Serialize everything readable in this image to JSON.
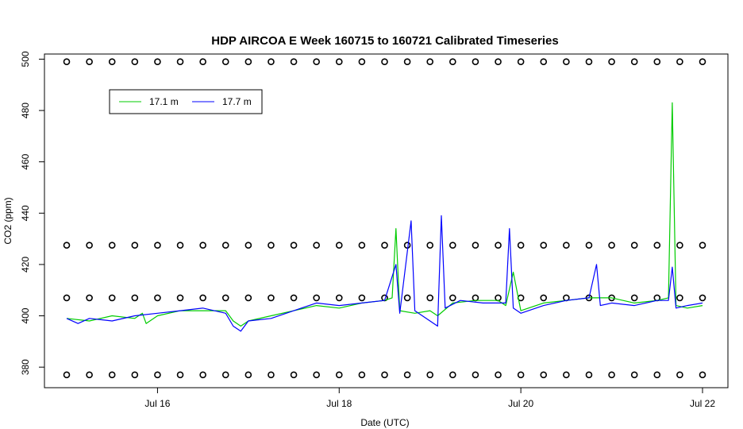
{
  "chart_data": {
    "type": "line",
    "title": "HDP AIRCOA E  Week 160715 to 160721  Calibrated Timeseries",
    "xlabel": "Date (UTC)",
    "ylabel": "CO2 (ppm)",
    "xlim": [
      "2016-07-15T00:00",
      "2016-07-22T00:00"
    ],
    "ylim": [
      372,
      502
    ],
    "x_ticks": [
      {
        "date": "2016-07-16",
        "label": "Jul 16"
      },
      {
        "date": "2016-07-18",
        "label": "Jul 18"
      },
      {
        "date": "2016-07-20",
        "label": "Jul 20"
      },
      {
        "date": "2016-07-22",
        "label": "Jul 22"
      }
    ],
    "y_ticks": [
      380,
      400,
      420,
      440,
      460,
      480,
      500
    ],
    "grid": false,
    "legend": {
      "position": "top-left"
    },
    "series": [
      {
        "name": "17.1 m",
        "color": "#00cc00",
        "points": [
          [
            "2016-07-15T00:00",
            399
          ],
          [
            "2016-07-15T06:00",
            398
          ],
          [
            "2016-07-15T12:00",
            400
          ],
          [
            "2016-07-15T18:00",
            399
          ],
          [
            "2016-07-15T20:00",
            401
          ],
          [
            "2016-07-15T21:00",
            397
          ],
          [
            "2016-07-16T00:00",
            400
          ],
          [
            "2016-07-16T06:00",
            402
          ],
          [
            "2016-07-16T12:00",
            402
          ],
          [
            "2016-07-16T18:00",
            402
          ],
          [
            "2016-07-16T20:00",
            398
          ],
          [
            "2016-07-16T22:00",
            396
          ],
          [
            "2016-07-17T00:00",
            398
          ],
          [
            "2016-07-17T06:00",
            400
          ],
          [
            "2016-07-17T12:00",
            402
          ],
          [
            "2016-07-17T18:00",
            404
          ],
          [
            "2016-07-18T00:00",
            403
          ],
          [
            "2016-07-18T06:00",
            405
          ],
          [
            "2016-07-18T12:00",
            406
          ],
          [
            "2016-07-18T14:00",
            407
          ],
          [
            "2016-07-18T15:00",
            434
          ],
          [
            "2016-07-18T16:00",
            402
          ],
          [
            "2016-07-18T20:00",
            401
          ],
          [
            "2016-07-19T00:00",
            402
          ],
          [
            "2016-07-19T02:00",
            400
          ],
          [
            "2016-07-19T06:00",
            405
          ],
          [
            "2016-07-19T12:00",
            406
          ],
          [
            "2016-07-19T18:00",
            406
          ],
          [
            "2016-07-19T20:00",
            404
          ],
          [
            "2016-07-19T22:00",
            417
          ],
          [
            "2016-07-20T00:00",
            402
          ],
          [
            "2016-07-20T06:00",
            405
          ],
          [
            "2016-07-20T12:00",
            406
          ],
          [
            "2016-07-20T18:00",
            407
          ],
          [
            "2016-07-21T00:00",
            407
          ],
          [
            "2016-07-21T06:00",
            405
          ],
          [
            "2016-07-21T12:00",
            406
          ],
          [
            "2016-07-21T15:00",
            407
          ],
          [
            "2016-07-21T16:00",
            483
          ],
          [
            "2016-07-21T17:00",
            404
          ],
          [
            "2016-07-21T20:00",
            403
          ],
          [
            "2016-07-22T00:00",
            404
          ]
        ]
      },
      {
        "name": "17.7 m",
        "color": "#0000ff",
        "points": [
          [
            "2016-07-15T00:00",
            399
          ],
          [
            "2016-07-15T03:00",
            397
          ],
          [
            "2016-07-15T06:00",
            399
          ],
          [
            "2016-07-15T12:00",
            398
          ],
          [
            "2016-07-15T18:00",
            400
          ],
          [
            "2016-07-16T00:00",
            401
          ],
          [
            "2016-07-16T06:00",
            402
          ],
          [
            "2016-07-16T12:00",
            403
          ],
          [
            "2016-07-16T18:00",
            401
          ],
          [
            "2016-07-16T20:00",
            396
          ],
          [
            "2016-07-16T22:00",
            394
          ],
          [
            "2016-07-17T00:00",
            398
          ],
          [
            "2016-07-17T06:00",
            399
          ],
          [
            "2016-07-17T12:00",
            402
          ],
          [
            "2016-07-17T18:00",
            405
          ],
          [
            "2016-07-18T00:00",
            404
          ],
          [
            "2016-07-18T06:00",
            405
          ],
          [
            "2016-07-18T12:00",
            406
          ],
          [
            "2016-07-18T15:00",
            420
          ],
          [
            "2016-07-18T16:00",
            401
          ],
          [
            "2016-07-18T19:00",
            437
          ],
          [
            "2016-07-18T20:00",
            402
          ],
          [
            "2016-07-19T00:00",
            398
          ],
          [
            "2016-07-19T02:00",
            396
          ],
          [
            "2016-07-19T03:00",
            439
          ],
          [
            "2016-07-19T04:00",
            403
          ],
          [
            "2016-07-19T08:00",
            406
          ],
          [
            "2016-07-19T14:00",
            405
          ],
          [
            "2016-07-19T20:00",
            405
          ],
          [
            "2016-07-19T21:00",
            434
          ],
          [
            "2016-07-19T22:00",
            403
          ],
          [
            "2016-07-20T00:00",
            401
          ],
          [
            "2016-07-20T06:00",
            404
          ],
          [
            "2016-07-20T12:00",
            406
          ],
          [
            "2016-07-20T18:00",
            407
          ],
          [
            "2016-07-20T20:00",
            420
          ],
          [
            "2016-07-20T21:00",
            404
          ],
          [
            "2016-07-21T00:00",
            405
          ],
          [
            "2016-07-21T06:00",
            404
          ],
          [
            "2016-07-21T12:00",
            406
          ],
          [
            "2016-07-21T15:00",
            406
          ],
          [
            "2016-07-21T16:00",
            419
          ],
          [
            "2016-07-21T17:00",
            403
          ],
          [
            "2016-07-21T20:00",
            404
          ],
          [
            "2016-07-22T00:00",
            405
          ]
        ]
      },
      {
        "name": "",
        "color": "#000000",
        "marker": "circle",
        "points": [
          [
            "2016-07-15T00:00",
            377
          ],
          [
            "2016-07-15T06:00",
            377
          ],
          [
            "2016-07-15T12:00",
            377
          ],
          [
            "2016-07-15T18:00",
            377
          ],
          [
            "2016-07-16T00:00",
            377
          ],
          [
            "2016-07-16T06:00",
            377
          ],
          [
            "2016-07-16T12:00",
            377
          ],
          [
            "2016-07-16T18:00",
            377
          ],
          [
            "2016-07-17T00:00",
            377
          ],
          [
            "2016-07-17T06:00",
            377
          ],
          [
            "2016-07-17T12:00",
            377
          ],
          [
            "2016-07-17T18:00",
            377
          ],
          [
            "2016-07-18T00:00",
            377
          ],
          [
            "2016-07-18T06:00",
            377
          ],
          [
            "2016-07-18T12:00",
            377
          ],
          [
            "2016-07-18T18:00",
            377
          ],
          [
            "2016-07-19T00:00",
            377
          ],
          [
            "2016-07-19T06:00",
            377
          ],
          [
            "2016-07-19T12:00",
            377
          ],
          [
            "2016-07-19T18:00",
            377
          ],
          [
            "2016-07-20T00:00",
            377
          ],
          [
            "2016-07-20T06:00",
            377
          ],
          [
            "2016-07-20T12:00",
            377
          ],
          [
            "2016-07-20T18:00",
            377
          ],
          [
            "2016-07-21T00:00",
            377
          ],
          [
            "2016-07-21T06:00",
            377
          ],
          [
            "2016-07-21T12:00",
            377
          ],
          [
            "2016-07-21T18:00",
            377
          ],
          [
            "2016-07-22T00:00",
            377
          ],
          [
            "2016-07-15T00:00",
            407
          ],
          [
            "2016-07-15T06:00",
            407
          ],
          [
            "2016-07-15T12:00",
            407
          ],
          [
            "2016-07-15T18:00",
            407
          ],
          [
            "2016-07-16T00:00",
            407
          ],
          [
            "2016-07-16T06:00",
            407
          ],
          [
            "2016-07-16T12:00",
            407
          ],
          [
            "2016-07-16T18:00",
            407
          ],
          [
            "2016-07-17T00:00",
            407
          ],
          [
            "2016-07-17T06:00",
            407
          ],
          [
            "2016-07-17T12:00",
            407
          ],
          [
            "2016-07-17T18:00",
            407
          ],
          [
            "2016-07-18T00:00",
            407
          ],
          [
            "2016-07-18T06:00",
            407
          ],
          [
            "2016-07-18T12:00",
            407
          ],
          [
            "2016-07-18T18:00",
            407
          ],
          [
            "2016-07-19T00:00",
            407
          ],
          [
            "2016-07-19T06:00",
            407
          ],
          [
            "2016-07-19T12:00",
            407
          ],
          [
            "2016-07-19T18:00",
            407
          ],
          [
            "2016-07-20T00:00",
            407
          ],
          [
            "2016-07-20T06:00",
            407
          ],
          [
            "2016-07-20T12:00",
            407
          ],
          [
            "2016-07-20T18:00",
            407
          ],
          [
            "2016-07-21T00:00",
            407
          ],
          [
            "2016-07-21T06:00",
            407
          ],
          [
            "2016-07-21T12:00",
            407
          ],
          [
            "2016-07-21T18:00",
            407
          ],
          [
            "2016-07-22T00:00",
            407
          ],
          [
            "2016-07-15T00:00",
            427.5
          ],
          [
            "2016-07-15T06:00",
            427.5
          ],
          [
            "2016-07-15T12:00",
            427.5
          ],
          [
            "2016-07-15T18:00",
            427.5
          ],
          [
            "2016-07-16T00:00",
            427.5
          ],
          [
            "2016-07-16T06:00",
            427.5
          ],
          [
            "2016-07-16T12:00",
            427.5
          ],
          [
            "2016-07-16T18:00",
            427.5
          ],
          [
            "2016-07-17T00:00",
            427.5
          ],
          [
            "2016-07-17T06:00",
            427.5
          ],
          [
            "2016-07-17T12:00",
            427.5
          ],
          [
            "2016-07-17T18:00",
            427.5
          ],
          [
            "2016-07-18T00:00",
            427.5
          ],
          [
            "2016-07-18T06:00",
            427.5
          ],
          [
            "2016-07-18T12:00",
            427.5
          ],
          [
            "2016-07-18T18:00",
            427.5
          ],
          [
            "2016-07-19T00:00",
            427.5
          ],
          [
            "2016-07-19T06:00",
            427.5
          ],
          [
            "2016-07-19T12:00",
            427.5
          ],
          [
            "2016-07-19T18:00",
            427.5
          ],
          [
            "2016-07-20T00:00",
            427.5
          ],
          [
            "2016-07-20T06:00",
            427.5
          ],
          [
            "2016-07-20T12:00",
            427.5
          ],
          [
            "2016-07-20T18:00",
            427.5
          ],
          [
            "2016-07-21T00:00",
            427.5
          ],
          [
            "2016-07-21T06:00",
            427.5
          ],
          [
            "2016-07-21T12:00",
            427.5
          ],
          [
            "2016-07-21T18:00",
            427.5
          ],
          [
            "2016-07-22T00:00",
            427.5
          ],
          [
            "2016-07-15T00:00",
            499
          ],
          [
            "2016-07-15T06:00",
            499
          ],
          [
            "2016-07-15T12:00",
            499
          ],
          [
            "2016-07-15T18:00",
            499
          ],
          [
            "2016-07-16T00:00",
            499
          ],
          [
            "2016-07-16T06:00",
            499
          ],
          [
            "2016-07-16T12:00",
            499
          ],
          [
            "2016-07-16T18:00",
            499
          ],
          [
            "2016-07-17T00:00",
            499
          ],
          [
            "2016-07-17T06:00",
            499
          ],
          [
            "2016-07-17T12:00",
            499
          ],
          [
            "2016-07-17T18:00",
            499
          ],
          [
            "2016-07-18T00:00",
            499
          ],
          [
            "2016-07-18T06:00",
            499
          ],
          [
            "2016-07-18T12:00",
            499
          ],
          [
            "2016-07-18T18:00",
            499
          ],
          [
            "2016-07-19T00:00",
            499
          ],
          [
            "2016-07-19T06:00",
            499
          ],
          [
            "2016-07-19T12:00",
            499
          ],
          [
            "2016-07-19T18:00",
            499
          ],
          [
            "2016-07-20T00:00",
            499
          ],
          [
            "2016-07-20T06:00",
            499
          ],
          [
            "2016-07-20T12:00",
            499
          ],
          [
            "2016-07-20T18:00",
            499
          ],
          [
            "2016-07-21T00:00",
            499
          ],
          [
            "2016-07-21T06:00",
            499
          ],
          [
            "2016-07-21T12:00",
            499
          ],
          [
            "2016-07-21T18:00",
            499
          ],
          [
            "2016-07-22T00:00",
            499
          ]
        ]
      }
    ]
  }
}
